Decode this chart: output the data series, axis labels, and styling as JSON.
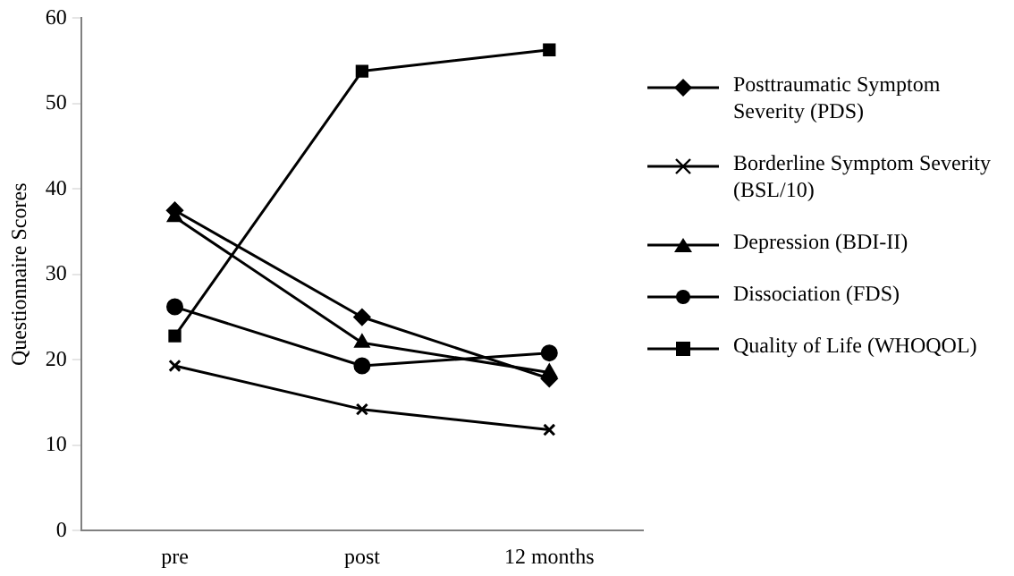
{
  "chart_data": {
    "type": "line",
    "ylabel": "Questionnaire Scores",
    "categories": [
      "pre",
      "post",
      "12 months"
    ],
    "ylim": [
      0,
      60
    ],
    "yticks": [
      0,
      10,
      20,
      30,
      40,
      50,
      60
    ],
    "grid": false,
    "legend": "right",
    "line_style": "solid",
    "series": [
      {
        "name": "Posttraumatic Symptom Severity (PDS)",
        "color": "#000000",
        "marker": "diamond",
        "values": [
          37.5,
          25,
          17.8
        ]
      },
      {
        "name": "Borderline Symptom Severity (BSL/10)",
        "color": "#000000",
        "marker": "cross",
        "values": [
          19.3,
          14.2,
          11.8
        ]
      },
      {
        "name": "Depression  (BDI-II)",
        "color": "#000000",
        "marker": "triangle",
        "values": [
          36.7,
          22,
          18.5
        ]
      },
      {
        "name": "Dissociation (FDS)",
        "color": "#000000",
        "marker": "circle",
        "values": [
          26.2,
          19.3,
          20.8
        ]
      },
      {
        "name": "Quality of Life (WHOQOL)",
        "color": "#000000",
        "marker": "square",
        "values": [
          22.8,
          53.8,
          56.3
        ]
      }
    ]
  }
}
